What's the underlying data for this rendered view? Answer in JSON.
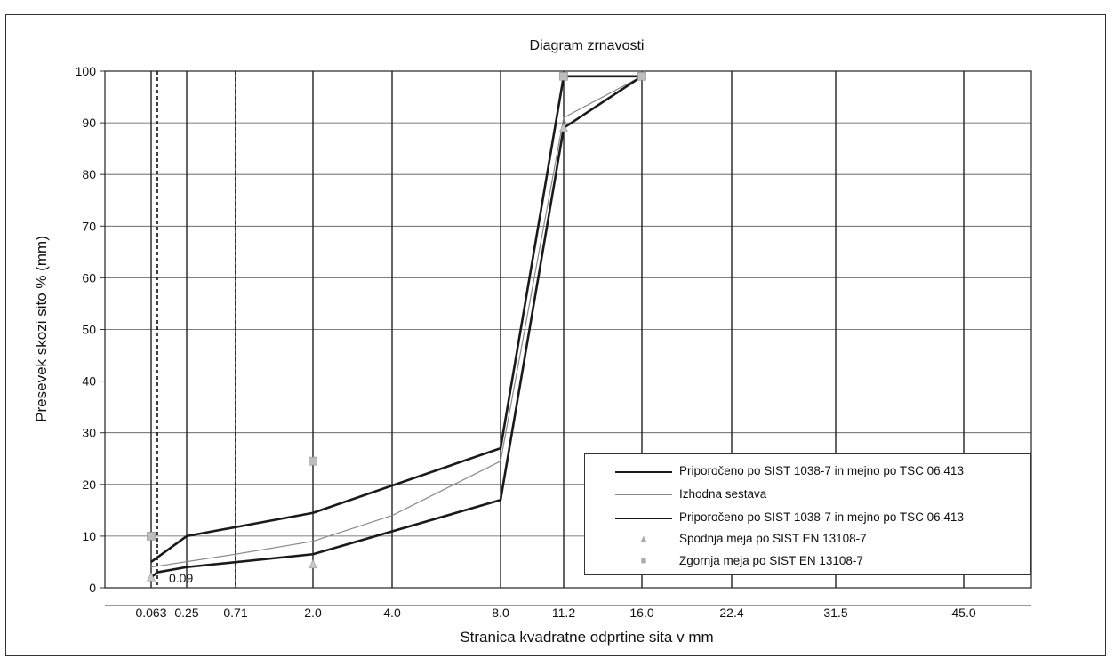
{
  "chart_data": {
    "type": "line",
    "title": "Diagram zrnavosti",
    "xlabel": "Stranica kvadratne odprtine sita v mm",
    "ylabel": "Presevek skozi sito % (mm)",
    "categories": [
      "0.063",
      "0.25",
      "0.71",
      "2.0",
      "4.0",
      "8.0",
      "11.2",
      "16.0",
      "22.4",
      "31.5",
      "45.0"
    ],
    "ylim": [
      0,
      100
    ],
    "yticks": [
      "0",
      "10",
      "20",
      "30",
      "40",
      "50",
      "60",
      "70",
      "80",
      "90",
      "100"
    ],
    "grid": true,
    "legend_position": "bottom-right",
    "annotation": "0.09",
    "series": [
      {
        "name": "Priporočeno po SIST 1038-7 in mejno po TSC 06.413",
        "style": "thick-dark",
        "points": [
          [
            "0.063",
            5
          ],
          [
            "0.25",
            10
          ],
          [
            "2.0",
            14.5
          ],
          [
            "8.0",
            27
          ],
          [
            "11.2",
            99
          ],
          [
            "16.0",
            99
          ]
        ]
      },
      {
        "name": "Izhodna sestava",
        "style": "thin-gray",
        "points": [
          [
            "0.063",
            4
          ],
          [
            "0.71",
            6.5
          ],
          [
            "2.0",
            9
          ],
          [
            "4.0",
            14
          ],
          [
            "8.0",
            24.5
          ],
          [
            "11.2",
            91
          ],
          [
            "16.0",
            99
          ]
        ]
      },
      {
        "name": "Priporočeno po SIST 1038-7 in mejno po TSC 06.413",
        "style": "thick-dark",
        "points": [
          [
            "0.063",
            2
          ],
          [
            "0.09",
            3
          ],
          [
            "0.25",
            4
          ],
          [
            "2.0",
            6.5
          ],
          [
            "8.0",
            17
          ],
          [
            "11.2",
            89
          ],
          [
            "16.0",
            99
          ]
        ]
      },
      {
        "name": "Spodnja meja po SIST EN 13108-7",
        "style": "triangle-marker",
        "points": [
          [
            "0.063",
            2
          ],
          [
            "2.0",
            4.5
          ],
          [
            "11.2",
            89
          ],
          [
            "16.0",
            99
          ]
        ]
      },
      {
        "name": "Zgornja meja po SIST EN 13108-7",
        "style": "square-marker",
        "points": [
          [
            "0.063",
            10
          ],
          [
            "2.0",
            24.5
          ],
          [
            "11.2",
            99
          ],
          [
            "16.0",
            99
          ]
        ]
      }
    ],
    "reference_lines": [
      "0.09",
      "0.71"
    ]
  }
}
